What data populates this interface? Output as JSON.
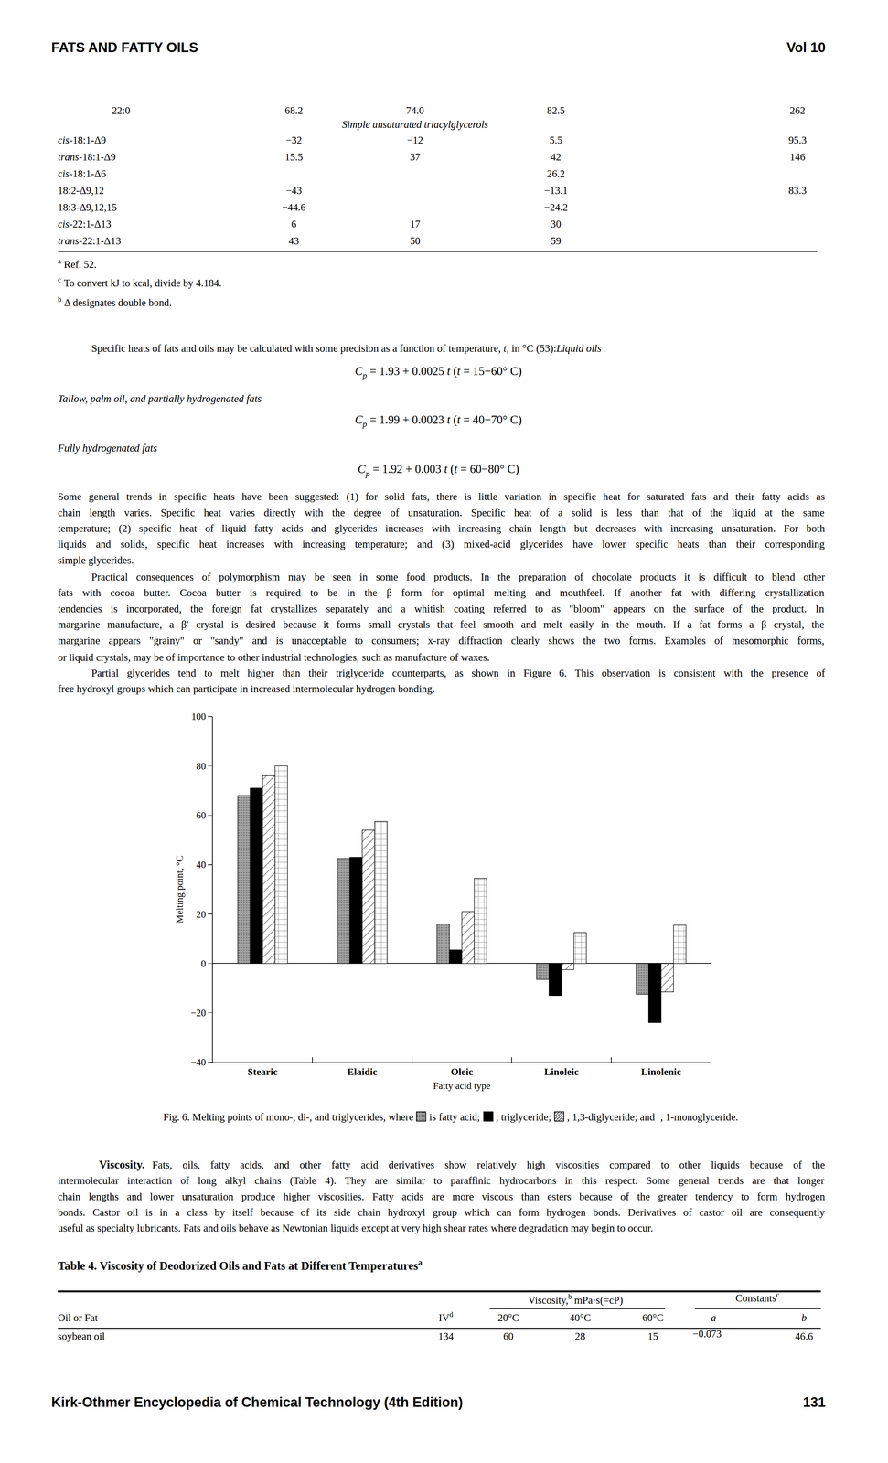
{
  "header": {
    "left": "FATS AND FATTY OILS",
    "right": "Vol 10"
  },
  "table3_end": {
    "rows": [
      {
        "label": "22:0",
        "cells": [
          "68.2",
          "74.0",
          "82.5",
          "262"
        ]
      }
    ],
    "section": "Simple unsaturated triacylglycerols",
    "section_rows": [
      {
        "italic": "cis-",
        "label": "18:1-Δ9",
        "cells": [
          "−32",
          "−12",
          "5.5",
          "95.3"
        ]
      },
      {
        "italic": "trans-",
        "label": "18:1-Δ9",
        "cells": [
          "15.5",
          "37",
          "42",
          "146"
        ]
      },
      {
        "italic": "cis-",
        "label": "18:1-Δ6",
        "cells": [
          null,
          null,
          "26.2",
          null
        ]
      },
      {
        "label": "18:2-Δ9,12",
        "cells": [
          "−43",
          null,
          "−13.1",
          "83.3"
        ]
      },
      {
        "label": "18:3-Δ9,12,15",
        "cells": [
          "−44.6",
          null,
          "−24.2",
          null
        ]
      },
      {
        "italic": "cis-",
        "label": "22:1-Δ13",
        "cells": [
          "6",
          "17",
          "30",
          null
        ]
      },
      {
        "italic": "trans-",
        "label": "22:1-Δ13",
        "cells": [
          "43",
          "50",
          "59",
          null
        ]
      }
    ],
    "footnotes": [
      {
        "mark": "a",
        "text": "Ref. 52."
      },
      {
        "mark": "c",
        "text": "To convert kJ to kcal, divide by 4.184."
      },
      {
        "mark": "b",
        "text": "Δ designates double bond."
      }
    ]
  },
  "specific_heat": {
    "intro": "Specific heats of fats and oils may be calculated with some precision as a function of temperature, ",
    "intro_var": "t",
    "intro_end": ", in °C (53):",
    "groups": [
      {
        "label": "Liquid oils",
        "equation": {
          "symbol": "C",
          "sub": "p",
          "text": "= 1.93 + 0.0025 t (t = 15−60° C)"
        }
      },
      {
        "label": "Tallow, palm oil, and partially hydrogenated fats",
        "equation": {
          "symbol": "C",
          "sub": "p",
          "text": "= 1.99 + 0.0023 t (t = 40−70° C)"
        }
      },
      {
        "label": "Fully hydrogenated fats",
        "equation": {
          "symbol": "C",
          "sub": "p",
          "text": "= 1.92 + 0.003 t (t = 60−80° C)"
        }
      }
    ]
  },
  "paragraphs": [
    [
      "Some general trends in specific heats have been suggested: (1) for solid fats, there is little variation in specific heat for saturated fats and their fatty acids as",
      "chain length varies. Specific heat varies directly with the degree of unsaturation. Specific heat of a solid is less than that of the liquid at the same",
      "temperature; (2) specific heat of liquid fatty acids and glycerides increases with increasing chain length but decreases with increasing unsaturation. For both",
      "liquids and solids, specific heat increases with increasing temperature; and (3) mixed-acid glycerides have lower specific heats than their corresponding",
      "simple glycerides."
    ],
    [
      "Practical consequences of polymorphism may be seen in some food products. In the preparation of chocolate products it is difficult to blend other",
      "fats with cocoa butter. Cocoa butter is required to be in the β form for optimal melting and mouthfeel. If another fat with differing crystallization",
      "tendencies is incorporated, the foreign fat crystallizes separately and a whitish coating referred to as \"bloom\" appears on the surface of the product. In",
      "margarine manufacture, a β′ crystal is desired because it forms small crystals that feel smooth and melt easily in the mouth. If a fat forms a β crystal, the",
      "margarine appears \"grainy\" or \"sandy\" and is unacceptable to consumers; x-ray diffraction clearly shows the two forms. Examples of mesomorphic forms,",
      "or liquid crystals, may be of importance to other industrial technologies, such as manufacture of waxes."
    ],
    [
      "Partial glycerides tend to melt higher than their triglyceride counterparts, as shown in Figure 6. This observation is consistent with the presence of",
      "free hydroxyl groups which can participate in increased intermolecular hydrogen bonding."
    ]
  ],
  "chart_data": {
    "type": "bar",
    "categories": [
      "Stearic",
      "Elaidic",
      "Oleic",
      "Linoleic",
      "Linolenic"
    ],
    "series": [
      {
        "color": "#a6a6a6",
        "marker": "dots",
        "values": [
          68,
          42.5,
          16,
          -6.5,
          -12.5
        ]
      },
      {
        "color": "#000000",
        "marker": "solid",
        "values": [
          71,
          43,
          5.5,
          -13,
          -24
        ]
      },
      {
        "color": "#ffffff",
        "marker": "hatch",
        "values": [
          76,
          54,
          21,
          -2.5,
          -11.5
        ]
      },
      {
        "color": "#ffffff",
        "marker": "grid",
        "values": [
          80,
          57.5,
          34.5,
          12.5,
          15.5
        ]
      }
    ],
    "xlabel": "Fatty acid type",
    "ylabel": "Melting point, °C",
    "ylim": [
      -40,
      100
    ],
    "yticks": [
      -40,
      -20,
      0,
      20,
      40,
      60,
      80,
      100
    ],
    "grid": false
  },
  "caption_parts": [
    "Fig. 6. Melting points of mono-, di-, and triglycerides, where",
    "is fatty acid;",
    ", triglyceride;",
    ", 1,3-diglyceride; and",
    ", 1-monoglyceride."
  ],
  "viscosity": {
    "heading": "Viscosity.",
    "lines": [
      "Fats, oils, fatty acids, and other fatty acid derivatives show relatively high viscosities compared to other liquids because of the",
      "intermolecular interaction of long alkyl chains (Table 4). They are similar to paraffinic hydrocarbons in this respect. Some general trends are that longer",
      "chain lengths and lower unsaturation produce higher viscosities. Fatty acids are more viscous than esters because of the greater tendency to form hydrogen",
      "bonds. Castor oil is in a class by itself because of its side chain hydroxyl group which can form hydrogen bonds. Derivatives of castor oil are consequently",
      "useful as specialty lubricants. Fats and oils behave as Newtonian liquids except at very high shear rates where degradation may begin to occur."
    ]
  },
  "table4": {
    "title": "Table 4. Viscosity of Deodorized Oils and Fats at Different Temperatures",
    "title_mark": "a",
    "group_headers": [
      {
        "text": "Viscosity,",
        "mark": "b",
        "text2": " mPa·s(=cP)"
      },
      {
        "text": "Constants",
        "mark": "c"
      }
    ],
    "columns": [
      {
        "text": "Oil or Fat"
      },
      {
        "text": "IV",
        "mark": "d"
      },
      {
        "text": "20°C"
      },
      {
        "text": "40°C"
      },
      {
        "text": "60°C"
      },
      {
        "text": "a"
      },
      {
        "text": "b"
      }
    ],
    "rows": [
      [
        "soybean oil",
        "134",
        "60",
        "28",
        "15",
        "−0.073",
        "46.6"
      ]
    ]
  },
  "footer": {
    "left": "Kirk-Othmer Encyclopedia of Chemical Technology (4th Edition)",
    "right": "131"
  }
}
